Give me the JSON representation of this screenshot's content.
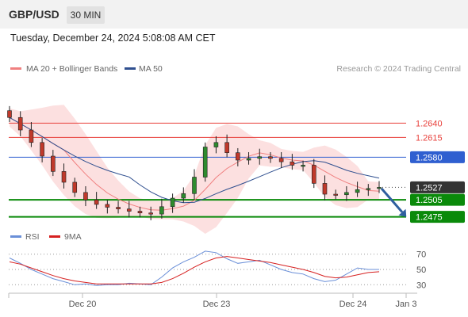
{
  "header": {
    "symbol": "GBP/USD",
    "timeframe": "30 MIN",
    "datetime": "Tuesday, December 24, 2024 5:08:08 AM CET"
  },
  "colors": {
    "resistance": "#e8413c",
    "current": "#2f5fd0",
    "support": "#0a8a0a",
    "price_tag": "#333333",
    "ma20": "#f08080",
    "bollinger": "#fbd5d5",
    "ma50": "#2f4f8f",
    "rsi": "#6a8fd8",
    "rsi_ma": "#d62020",
    "arrow": "#2f5f9f",
    "candle_up": "#2e8b2e",
    "candle_down": "#c0392b"
  },
  "chart_data": [
    {
      "type": "candlestick",
      "legend": [
        {
          "name": "MA 20 + Bollinger Bands",
          "color": "#f08080"
        },
        {
          "name": "MA 50",
          "color": "#2f4f8f"
        }
      ],
      "credit": "Research © 2024 Trading Central",
      "x_tick_labels": [
        "Dec 20",
        "Dec 23",
        "Dec 24",
        "Jan 3"
      ],
      "y_range": [
        1.2462,
        1.2695
      ],
      "levels": [
        {
          "label": "1.2640",
          "value": 1.264,
          "kind": "resistance"
        },
        {
          "label": "1.2615",
          "value": 1.2615,
          "kind": "resistance"
        },
        {
          "label": "1.2580",
          "value": 1.258,
          "kind": "pivot"
        },
        {
          "label": "1.2527",
          "value": 1.2527,
          "kind": "current"
        },
        {
          "label": "1.2505",
          "value": 1.2505,
          "kind": "support"
        },
        {
          "label": "1.2475",
          "value": 1.2475,
          "kind": "support"
        }
      ],
      "close_series": [
        1.265,
        1.2628,
        1.2606,
        1.2582,
        1.2555,
        1.2536,
        1.2518,
        1.2505,
        1.2497,
        1.2492,
        1.2489,
        1.2485,
        1.2482,
        1.248,
        1.2493,
        1.2508,
        1.2516,
        1.2545,
        1.2598,
        1.2606,
        1.2588,
        1.2575,
        1.2578,
        1.2581,
        1.2578,
        1.2572,
        1.2566,
        1.2566,
        1.2534,
        1.2515,
        1.2514,
        1.2518,
        1.2523,
        1.2525,
        1.2527
      ],
      "forecast": {
        "from": 1.2525,
        "to": 1.2475,
        "direction": "down"
      }
    },
    {
      "type": "line",
      "legend": [
        {
          "name": "RSI",
          "color": "#6a8fd8"
        },
        {
          "name": "9MA",
          "color": "#d62020"
        }
      ],
      "y_range": [
        22,
        78
      ],
      "y_tick_labels": [
        "70",
        "50",
        "30"
      ],
      "y_ticks": [
        70,
        50,
        30
      ],
      "rsi": [
        65,
        58,
        50,
        44,
        38,
        34,
        30,
        31,
        29,
        30,
        30,
        32,
        31,
        30,
        40,
        52,
        60,
        66,
        74,
        72,
        64,
        58,
        60,
        62,
        56,
        50,
        46,
        44,
        38,
        34,
        36,
        44,
        52,
        50,
        50
      ],
      "ma9": [
        60,
        57,
        52,
        47,
        42,
        38,
        35,
        33,
        31,
        31,
        31,
        31,
        31,
        31,
        33,
        38,
        45,
        53,
        60,
        65,
        67,
        65,
        63,
        61,
        59,
        56,
        53,
        50,
        46,
        41,
        39,
        40,
        43,
        46,
        47
      ]
    }
  ]
}
